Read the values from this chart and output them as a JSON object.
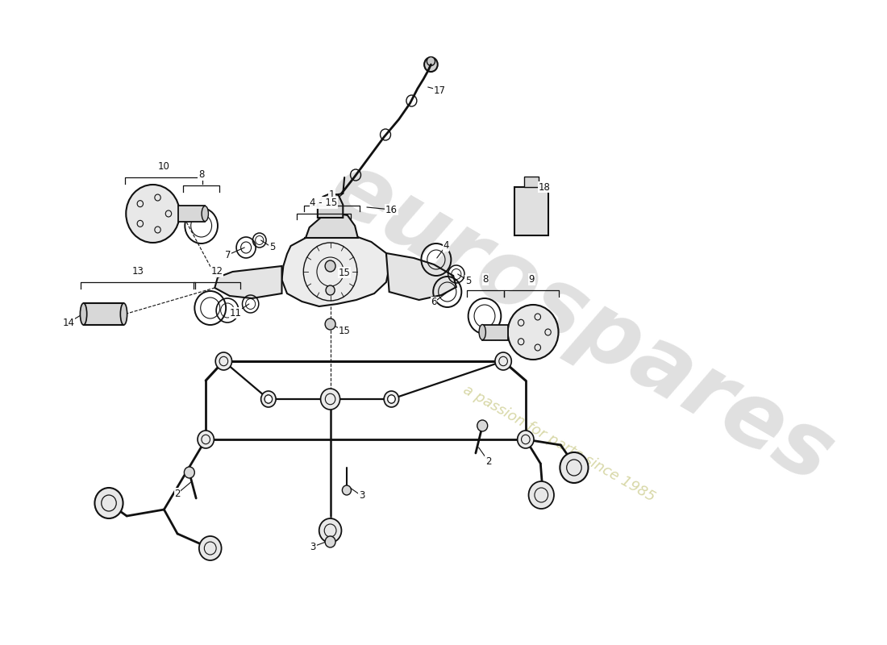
{
  "bg_color": "#ffffff",
  "line_color": "#111111",
  "watermark1": "eurospares",
  "watermark2": "a passion for parts since 1985",
  "wm_color1": "#e0e0e0",
  "wm_color2": "#d8d8a8",
  "fig_width": 11.0,
  "fig_height": 8.0,
  "dpi": 100
}
